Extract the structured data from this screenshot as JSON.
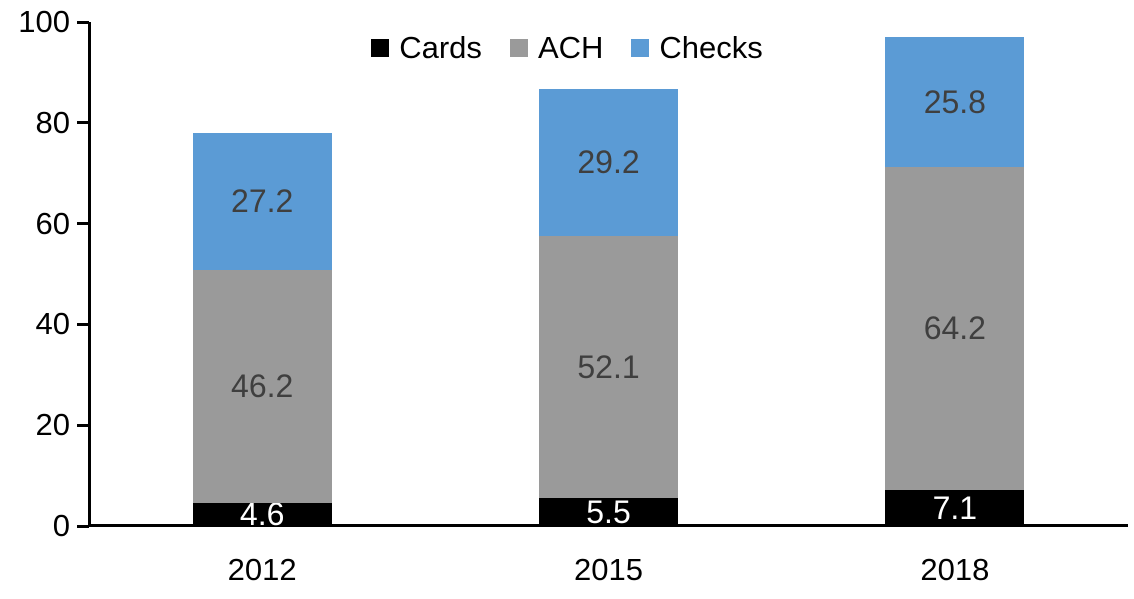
{
  "chart_data": {
    "type": "bar",
    "stacked": true,
    "title": "",
    "xlabel": "",
    "ylabel": "",
    "categories": [
      "2012",
      "2015",
      "2018"
    ],
    "series": [
      {
        "name": "Cards",
        "color": "#000000",
        "label_color": "#ffffff",
        "values": [
          4.6,
          5.5,
          7.1
        ]
      },
      {
        "name": "ACH",
        "color": "#9a9a9a",
        "label_color": "#3f3f3f",
        "values": [
          46.2,
          52.1,
          64.2
        ]
      },
      {
        "name": "Checks",
        "color": "#5b9bd5",
        "label_color": "#3f3f3f",
        "values": [
          27.2,
          29.2,
          25.8
        ]
      }
    ],
    "data_labels_shown": true,
    "ylim": [
      0,
      100
    ],
    "yticks": [
      0,
      20,
      40,
      60,
      80,
      100
    ],
    "grid": false,
    "legend_position": "top-center",
    "axis_color": "#000000",
    "text_color": "#000000"
  }
}
